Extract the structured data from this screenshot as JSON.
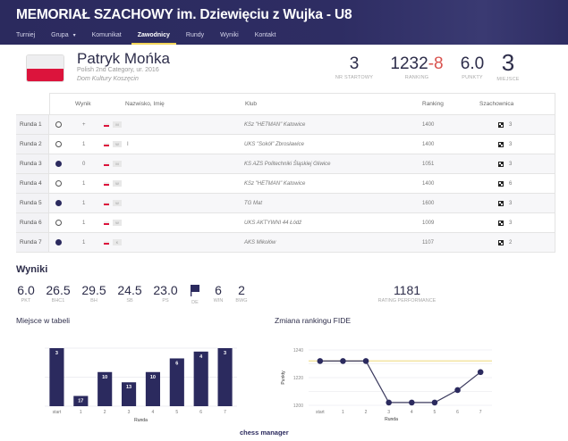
{
  "header": {
    "title": "MEMORIAŁ SZACHOWY im. Dziewięciu z Wujka - U8",
    "nav": [
      {
        "label": "Turniej",
        "active": false
      },
      {
        "label": "Grupa",
        "active": false,
        "has_caret": true
      },
      {
        "label": "Komunikat",
        "active": false
      },
      {
        "label": "Zawodnicy",
        "active": true
      },
      {
        "label": "Rundy",
        "active": false
      },
      {
        "label": "Wyniki",
        "active": false
      },
      {
        "label": "Kontakt",
        "active": false
      }
    ],
    "caret_icon": "▾"
  },
  "player": {
    "name": "Patryk Mońka",
    "subtitle": "Polish 2nd Category, ur. 2016",
    "club": "Dom Kultury Koszęcin",
    "flag": "poland-flag",
    "stats": {
      "start_no": {
        "value": "3",
        "label": "NR STARTOWY"
      },
      "ranking": {
        "value": "1232",
        "change": "-8",
        "label": "RANKING"
      },
      "points": {
        "value": "6.0",
        "label": "PUNKTY"
      },
      "place": {
        "value": "3",
        "label": "MIEJSCE"
      }
    }
  },
  "table": {
    "headers": {
      "result": "Wynik",
      "name": "Nazwisko, Imię",
      "club": "Klub",
      "ranking": "Ranking",
      "board": "Szachownica"
    },
    "rows": [
      {
        "round": "Runda 1",
        "color": "white",
        "result": "+",
        "title": "M",
        "name": "",
        "club": "KSz \"HETMAN\" Katowice",
        "ranking": "1400",
        "board": "3"
      },
      {
        "round": "Runda 2",
        "color": "white",
        "result": "1",
        "title": "W",
        "name": "I",
        "club": "UKS \"Sokół\" Zbrosławice",
        "ranking": "1400",
        "board": "3"
      },
      {
        "round": "Runda 3",
        "color": "black",
        "result": "0",
        "title": "M",
        "name": "",
        "club": "KS AZS Politechniki Śląskiej Gliwice",
        "ranking": "1051",
        "board": "3"
      },
      {
        "round": "Runda 4",
        "color": "white",
        "result": "1",
        "title": "W",
        "name": "",
        "club": "KSz \"HETMAN\" Katowice",
        "ranking": "1400",
        "board": "6"
      },
      {
        "round": "Runda 5",
        "color": "black",
        "result": "1",
        "title": "W",
        "name": "",
        "club": "TG Mat",
        "ranking": "1600",
        "board": "3"
      },
      {
        "round": "Runda 6",
        "color": "white",
        "result": "1",
        "title": "W",
        "name": "",
        "club": "UKS AKTYWNI 44 Łódź",
        "ranking": "1009",
        "board": "3"
      },
      {
        "round": "Runda 7",
        "color": "black",
        "result": "1",
        "title": "K",
        "name": "",
        "club": "AKS Mikołów",
        "ranking": "1107",
        "board": "2"
      }
    ]
  },
  "results": {
    "title": "Wyniki",
    "items": [
      {
        "value": "6.0",
        "label": "PKT"
      },
      {
        "value": "26.5",
        "label": "BHC1"
      },
      {
        "value": "29.5",
        "label": "BH"
      },
      {
        "value": "24.5",
        "label": "SB"
      },
      {
        "value": "23.0",
        "label": "PS"
      },
      {
        "icon": "flag-icon",
        "label": "DE"
      },
      {
        "value": "6",
        "label": "WIN"
      },
      {
        "value": "2",
        "label": "BWG"
      }
    ],
    "performance": {
      "value": "1181",
      "label": "RATING PERFORMANCE"
    }
  },
  "chart_data": [
    {
      "type": "bar",
      "title": "Miejsce w tabeli",
      "categories": [
        "start",
        "1",
        "2",
        "3",
        "4",
        "5",
        "6",
        "7"
      ],
      "values": [
        3,
        17,
        10,
        13,
        10,
        6,
        4,
        3
      ],
      "xlabel": "Runda",
      "ylabel": "",
      "inverted": true,
      "ylim": [
        20,
        3
      ],
      "color": "#2b2a5e"
    },
    {
      "type": "line",
      "title": "Zmiana rankingu FIDE",
      "categories": [
        "start",
        "1",
        "2",
        "3",
        "4",
        "5",
        "6",
        "7"
      ],
      "values": [
        1232,
        1232,
        1232,
        1202,
        1202,
        1202,
        1211,
        1224
      ],
      "xlabel": "Runda",
      "ylabel": "Punkty",
      "ylim": [
        1200,
        1240
      ],
      "yticks": [
        "1200",
        "1220",
        "1240"
      ],
      "reference_line": 1232,
      "color": "#2b2a5e",
      "reference_color": "#f3e3a0"
    }
  ],
  "footer": {
    "brand": "chess manager"
  }
}
